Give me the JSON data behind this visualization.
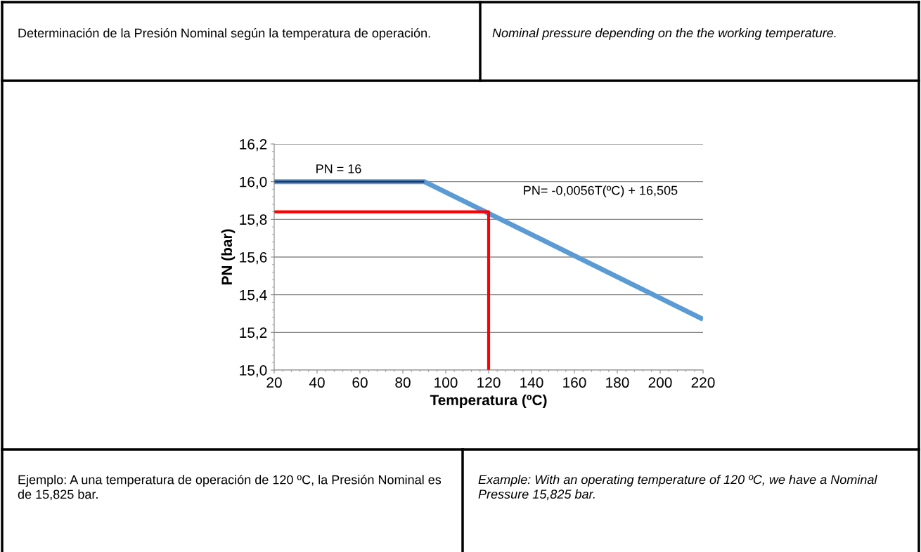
{
  "chart_data": {
    "type": "line",
    "title": "Determinación de la Presión Nominal según la temperatura de operación.",
    "subtitle": "Nominal pressure depending on the the working temperature.",
    "xlabel": "Temperatura (ºC)",
    "ylabel": "PN (bar)",
    "series": [
      {
        "color": "#5b9bd5",
        "x": [
          20,
          90,
          220
        ],
        "values": [
          16.0,
          16.0,
          15.27
        ]
      },
      {
        "color": "#1f3864",
        "x": [
          20,
          90
        ],
        "values": [
          16.0,
          16.0
        ]
      },
      {
        "color": "#ff0000",
        "x": [
          20,
          120,
          120
        ],
        "values": [
          15.84,
          15.84,
          15.0
        ]
      }
    ],
    "xlim": [
      20,
      220
    ],
    "xticks": [
      20,
      40,
      60,
      80,
      100,
      120,
      140,
      160,
      180,
      200,
      220
    ],
    "ylim": [
      15.0,
      16.2
    ],
    "yticks": [
      {
        "value": 15.0,
        "label": "15,0"
      },
      {
        "value": 15.2,
        "label": "15,2"
      },
      {
        "value": 15.4,
        "label": "15,4"
      },
      {
        "value": 15.6,
        "label": "15,6"
      },
      {
        "value": 15.8,
        "label": "15,8"
      },
      {
        "value": 16.0,
        "label": "16,0"
      },
      {
        "value": 16.2,
        "label": "16,2"
      }
    ],
    "grid": "y",
    "marker": "none",
    "line_style": "solid",
    "legend": false,
    "annotations": [
      {
        "text": "PN = 16",
        "x": 50,
        "y": 16.0
      },
      "PN= -0,0056T(ºC) + 16,505",
      "Ejemplo: A una temperatura de operación de 120 ºC, la Presión Nominal es de 15,825 bar.",
      "Example: With an operating temperature of 120 ºC, we have a Nominal Pressure 15,825 bar."
    ]
  }
}
